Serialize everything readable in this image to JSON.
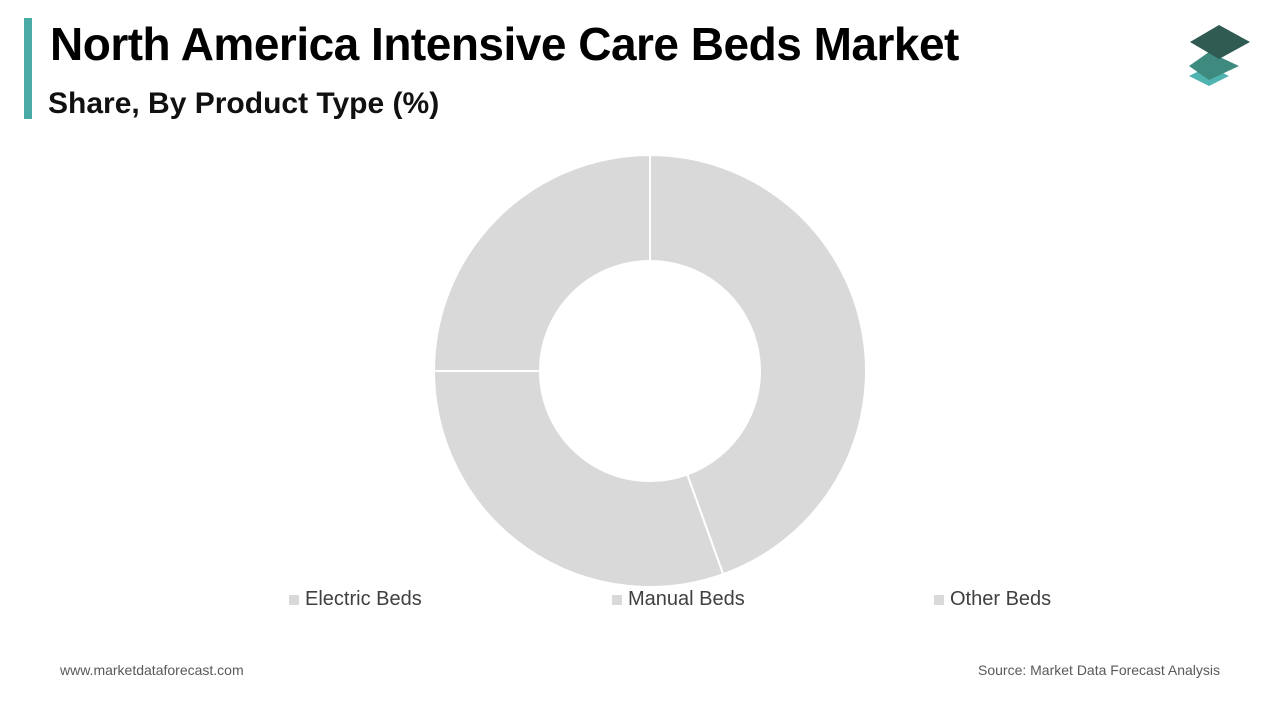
{
  "header": {
    "title": "North America Intensive Care Beds Market",
    "subtitle": "Share, By Product Type (%)",
    "accent_color": "#4aaaa5"
  },
  "logo": {
    "icon": "stacked-layers-logo-icon",
    "colors": [
      "#2f5b52",
      "#3f8a7f",
      "#4fb3b0"
    ]
  },
  "chart_data": {
    "type": "pie",
    "variant": "donut",
    "title": "North America Intensive Care Beds Market",
    "subtitle": "Share, By Product Type (%)",
    "categories": [
      "Electric Beds",
      "Manual Beds",
      "Other Beds"
    ],
    "values": [
      44.5,
      30.5,
      25.0
    ],
    "colors": [
      "#d9d9d9",
      "#d9d9d9",
      "#d9d9d9"
    ],
    "legend": "bottom",
    "data_labels": false
  },
  "footer": {
    "website": "www.marketdataforecast.com",
    "source": "Source: Market Data Forecast Analysis"
  }
}
